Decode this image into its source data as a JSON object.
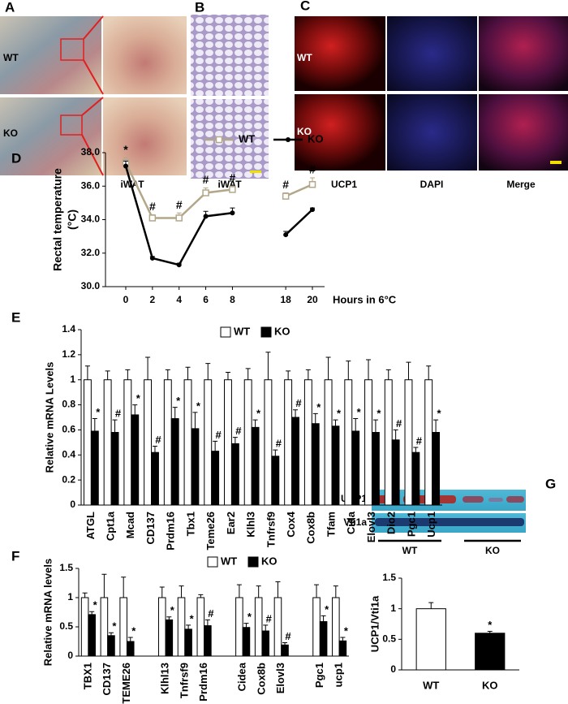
{
  "panels": [
    {
      "label": "A",
      "rows": [
        "WT",
        "KO"
      ],
      "caption": "iWAT"
    },
    {
      "label": "B",
      "caption": "iWAT"
    },
    {
      "label": "C",
      "rows": [
        "WT",
        "KO"
      ],
      "columns": [
        "UCP1",
        "DAPI",
        "Merge"
      ]
    }
  ],
  "blot": {
    "label": "G",
    "bands": [
      "UCP1",
      "Vti1a"
    ],
    "groups": [
      "WT",
      "KO"
    ]
  },
  "chart_data": [
    {
      "type": "line",
      "label": "D",
      "y_label": [
        "Rectal temperature",
        "(°C)"
      ],
      "x_label": "Hours in 6°C",
      "x": [
        "0",
        "2",
        "4",
        "6",
        "8",
        null,
        "18",
        "20"
      ],
      "ylim": [
        30,
        38
      ],
      "yticks": [
        {
          "value": 30,
          "label": "30.0"
        },
        {
          "value": 32,
          "label": "32.0"
        },
        {
          "value": 34,
          "label": "34.0"
        },
        {
          "value": 36,
          "label": "36.0"
        },
        {
          "value": 38,
          "label": "38.0"
        }
      ],
      "legend": "top",
      "markers": [
        "*",
        "#",
        "#",
        "#",
        "#",
        null,
        "#",
        "#"
      ],
      "series": [
        {
          "name": "WT",
          "color": "#b3a789",
          "marker": "square",
          "values": [
            37.4,
            34.1,
            34.1,
            35.6,
            35.8,
            null,
            35.4,
            36.1
          ],
          "errors": [
            0.3,
            0.2,
            0.3,
            0.3,
            0.2,
            null,
            0.2,
            0.4
          ]
        },
        {
          "name": "KO",
          "color": "#000000",
          "marker": "circle",
          "values": [
            37.2,
            31.7,
            31.3,
            34.2,
            34.4,
            null,
            33.1,
            34.6
          ],
          "errors": [
            0.3,
            0.1,
            0.1,
            0.3,
            0.3,
            null,
            0.2,
            0.1
          ]
        }
      ]
    },
    {
      "type": "bar",
      "label": "E",
      "y_label": "Relative mRNA Levels",
      "categories": [
        "ATGL",
        "Cpt1a",
        "Mcad",
        "CD137",
        "Prdm16",
        "Tbx1",
        "Teme26",
        "Ear2",
        "Klhl3",
        "Tnfrsf9",
        "Cox4",
        "Cox8b",
        "Tfam",
        "Cida",
        "Elovl3",
        "Dio2",
        "Pgc1",
        "Ucp1"
      ],
      "ylim": [
        0,
        1.4
      ],
      "yticks": [
        0,
        0.2,
        0.4,
        0.6,
        0.8,
        1,
        1.2,
        1.4
      ],
      "legend": "top",
      "series": [
        {
          "name": "WT",
          "color": "#ffffff",
          "values": [
            1,
            1,
            1,
            1,
            1,
            1,
            1,
            1,
            1,
            1,
            1,
            1,
            1,
            1,
            1,
            1,
            1,
            1
          ],
          "errors": [
            0.11,
            0.07,
            0.08,
            0.18,
            0.08,
            0.1,
            0.13,
            0.06,
            0.09,
            0.22,
            0.07,
            0.08,
            0.18,
            0.15,
            0.16,
            0.08,
            0.14,
            0.11
          ]
        },
        {
          "name": "KO",
          "color": "#000000",
          "values": [
            0.59,
            0.58,
            0.72,
            0.42,
            0.69,
            0.61,
            0.43,
            0.49,
            0.62,
            0.39,
            0.7,
            0.65,
            0.63,
            0.59,
            0.58,
            0.52,
            0.42,
            0.58
          ],
          "errors": [
            0.1,
            0.1,
            0.08,
            0.05,
            0.09,
            0.13,
            0.08,
            0.05,
            0.06,
            0.05,
            0.06,
            0.08,
            0.05,
            0.1,
            0.1,
            0.08,
            0.04,
            0.1
          ],
          "markers": [
            "*",
            "#",
            "*",
            "#",
            "*",
            "*",
            "#",
            "#",
            "*",
            "#",
            "#",
            "*",
            "*",
            "*",
            "*",
            "#",
            "#",
            "*"
          ]
        }
      ]
    },
    {
      "type": "bar",
      "label": "F",
      "y_label": "Relative mRNA levels",
      "categories": [
        "TBX1",
        "CD137",
        "TEME26",
        null,
        "Klhl13",
        "Tnfrsf9",
        "Prdm16",
        null,
        "Cidea",
        "Cox8b",
        "Elovl3",
        null,
        "Pgc1",
        "ucp1"
      ],
      "ylim": [
        0,
        1.5
      ],
      "yticks": [
        0,
        0.5,
        1,
        1.5
      ],
      "legend": "top",
      "series": [
        {
          "name": "WT",
          "color": "#ffffff",
          "values": [
            1,
            1,
            1,
            null,
            1,
            1,
            1,
            null,
            1,
            1,
            1,
            null,
            1,
            1
          ],
          "errors": [
            0.08,
            0.4,
            0.35,
            null,
            0.18,
            0.2,
            0.05,
            null,
            0.22,
            0.2,
            0.27,
            null,
            0.22,
            0.2
          ]
        },
        {
          "name": "KO",
          "color": "#000000",
          "values": [
            0.71,
            0.35,
            0.25,
            null,
            0.62,
            0.46,
            0.52,
            null,
            0.49,
            0.43,
            0.19,
            null,
            0.59,
            0.26
          ],
          "errors": [
            0.05,
            0.05,
            0.07,
            null,
            0.05,
            0.07,
            0.1,
            null,
            0.07,
            0.1,
            0.04,
            null,
            0.1,
            0.06
          ],
          "markers": [
            "*",
            "*",
            "*",
            null,
            "*",
            "*",
            "#",
            null,
            "*",
            "#",
            "#",
            null,
            "*",
            "*"
          ]
        }
      ]
    },
    {
      "type": "bar",
      "y_label": "UCP1/Vti1a",
      "categories": [
        "WT",
        "KO"
      ],
      "ylim": [
        0,
        1.5
      ],
      "yticks": [
        0,
        0.5,
        1,
        1.5
      ],
      "series": [
        {
          "colors": [
            "#ffffff",
            "#000000"
          ],
          "values": [
            1,
            0.6
          ],
          "errors": [
            0.1,
            0.03
          ],
          "markers": [
            null,
            "*"
          ]
        }
      ]
    }
  ]
}
